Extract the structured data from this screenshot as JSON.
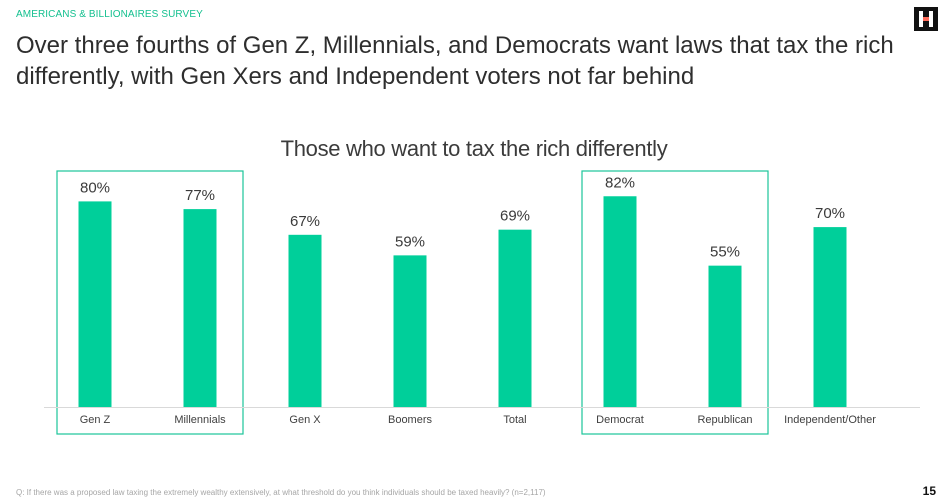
{
  "header": {
    "eyebrow": "AMERICANS & BILLIONAIRES SURVEY",
    "headline": "Over three fourths of Gen Z, Millennials, and Democrats want laws that tax the rich differently, with Gen Xers and Independent voters not far behind"
  },
  "colors": {
    "bar": "#00cf9a",
    "accent": "#14c08f",
    "highlight_box": "#1cc49a",
    "text": "#2e2e2e"
  },
  "logo": {
    "icon": "brand-logo-icon"
  },
  "chart_data": {
    "type": "bar",
    "title": "Those who want to tax the rich differently",
    "xlabel": "",
    "ylabel": "",
    "categories": [
      "Gen Z",
      "Millennials",
      "Gen X",
      "Boomers",
      "Total",
      "Democrat",
      "Republican",
      "Independent/Other"
    ],
    "values": [
      80,
      77,
      67,
      59,
      69,
      82,
      55,
      70
    ],
    "value_labels": [
      "80%",
      "77%",
      "67%",
      "59%",
      "69%",
      "82%",
      "55%",
      "70%"
    ],
    "ylim": [
      0,
      100
    ],
    "grid": false,
    "highlight_groups": [
      [
        "Gen Z",
        "Millennials"
      ],
      [
        "Democrat",
        "Republican"
      ]
    ]
  },
  "footer": {
    "footnote": "Q: If there was a proposed law taxing the extremely wealthy extensively, at what threshold do you think individuals should be taxed heavily? (n=2,117)",
    "page_number": "15"
  }
}
